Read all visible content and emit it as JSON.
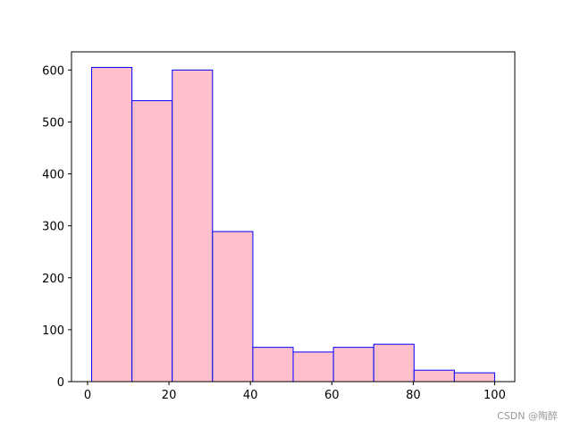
{
  "chart_data": {
    "type": "histogram",
    "bins": [
      1,
      10.9,
      20.8,
      30.7,
      40.6,
      50.5,
      60.4,
      70.3,
      80.2,
      90.1,
      100
    ],
    "values": [
      605,
      541,
      600,
      289,
      66,
      57,
      66,
      72,
      22,
      17
    ],
    "color": "pink",
    "edgecolor": "blue",
    "xlim": [
      -3.95,
      104.95
    ],
    "xticks": [
      0,
      20,
      40,
      60,
      80,
      100
    ],
    "ylim": [
      0,
      635
    ],
    "yticks": [
      0,
      100,
      200,
      300,
      400,
      500,
      600
    ]
  },
  "watermark": "CSDN @陶醉"
}
